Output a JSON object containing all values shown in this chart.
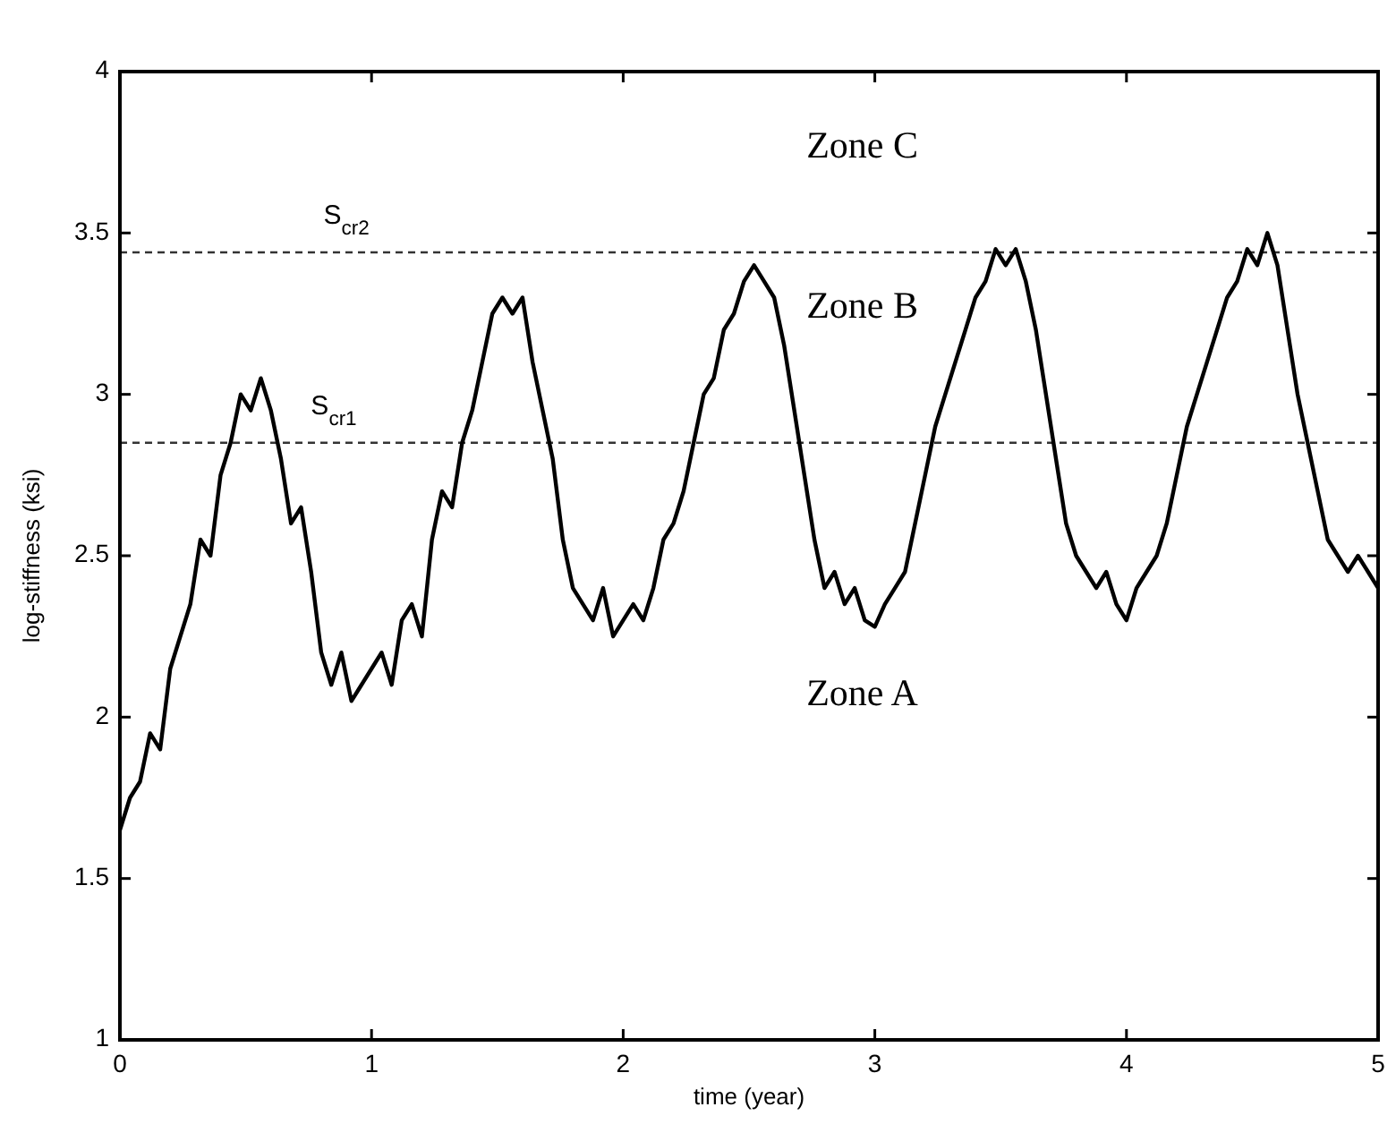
{
  "chart_data": {
    "type": "line",
    "xlabel": "time (year)",
    "ylabel": "log-stiffness (ksi)",
    "xlim": [
      0,
      5
    ],
    "xticks": [
      0,
      1,
      2,
      3,
      4,
      5
    ],
    "ylim": [
      1,
      4
    ],
    "yticks": [
      1,
      1.5,
      2,
      2.5,
      3,
      3.5,
      4
    ],
    "grid": false,
    "marker": "none",
    "line_style": "solid",
    "ref_lines": [
      {
        "axis": "y",
        "value": 3.44,
        "label": "S$_{cr2}$",
        "color": "#333333",
        "line_style": "dashed"
      },
      {
        "axis": "y",
        "value": 2.85,
        "label": "S$_{cr1}$",
        "color": "#333333",
        "line_style": "dashed"
      }
    ],
    "annotations": [
      "Zone C",
      "Zone B",
      "Zone A"
    ],
    "x": [
      0,
      0.04,
      0.08,
      0.12,
      0.16,
      0.2,
      0.24,
      0.28,
      0.32,
      0.36,
      0.4,
      0.44,
      0.48,
      0.52,
      0.56,
      0.6,
      0.64,
      0.68,
      0.72,
      0.76,
      0.8,
      0.84,
      0.88,
      0.92,
      0.96,
      1,
      1.04,
      1.08,
      1.12,
      1.16,
      1.2,
      1.24,
      1.28,
      1.32,
      1.36,
      1.4,
      1.44,
      1.48,
      1.52,
      1.56,
      1.6,
      1.64,
      1.68,
      1.72,
      1.76,
      1.8,
      1.84,
      1.88,
      1.92,
      1.96,
      2,
      2.04,
      2.08,
      2.12,
      2.16,
      2.2,
      2.24,
      2.28,
      2.32,
      2.36,
      2.4,
      2.44,
      2.48,
      2.52,
      2.56,
      2.6,
      2.64,
      2.68,
      2.72,
      2.76,
      2.8,
      2.84,
      2.88,
      2.92,
      2.96,
      3,
      3.04,
      3.08,
      3.12,
      3.16,
      3.2,
      3.24,
      3.28,
      3.32,
      3.36,
      3.4,
      3.44,
      3.48,
      3.52,
      3.56,
      3.6,
      3.64,
      3.68,
      3.72,
      3.76,
      3.8,
      3.84,
      3.88,
      3.92,
      3.96,
      4,
      4.04,
      4.08,
      4.12,
      4.16,
      4.2,
      4.24,
      4.28,
      4.32,
      4.36,
      4.4,
      4.44,
      4.48,
      4.52,
      4.56,
      4.6,
      4.64,
      4.68,
      4.72,
      4.76,
      4.8,
      4.84,
      4.88,
      4.92,
      4.96,
      5
    ],
    "series": [
      {
        "color": "#000000",
        "values": [
          1.65,
          1.75,
          1.8,
          1.95,
          1.9,
          2.15,
          2.25,
          2.35,
          2.55,
          2.5,
          2.75,
          2.85,
          3.0,
          2.95,
          3.05,
          2.95,
          2.8,
          2.6,
          2.65,
          2.45,
          2.2,
          2.1,
          2.2,
          2.05,
          2.1,
          2.15,
          2.2,
          2.1,
          2.3,
          2.35,
          2.25,
          2.55,
          2.7,
          2.65,
          2.85,
          2.95,
          3.1,
          3.25,
          3.3,
          3.25,
          3.3,
          3.1,
          2.95,
          2.8,
          2.55,
          2.4,
          2.35,
          2.3,
          2.4,
          2.25,
          2.3,
          2.35,
          2.3,
          2.4,
          2.55,
          2.6,
          2.7,
          2.85,
          3.0,
          3.05,
          3.2,
          3.25,
          3.35,
          3.4,
          3.35,
          3.3,
          3.15,
          2.95,
          2.75,
          2.55,
          2.4,
          2.45,
          2.35,
          2.4,
          2.3,
          2.28,
          2.35,
          2.4,
          2.45,
          2.6,
          2.75,
          2.9,
          3.0,
          3.1,
          3.2,
          3.3,
          3.35,
          3.45,
          3.4,
          3.45,
          3.35,
          3.2,
          3.0,
          2.8,
          2.6,
          2.5,
          2.45,
          2.4,
          2.45,
          2.35,
          2.3,
          2.4,
          2.45,
          2.5,
          2.6,
          2.75,
          2.9,
          3.0,
          3.1,
          3.2,
          3.3,
          3.35,
          3.45,
          3.4,
          3.5,
          3.4,
          3.2,
          3.0,
          2.85,
          2.7,
          2.55,
          2.5,
          2.45,
          2.5,
          2.45,
          2.4
        ]
      }
    ]
  }
}
